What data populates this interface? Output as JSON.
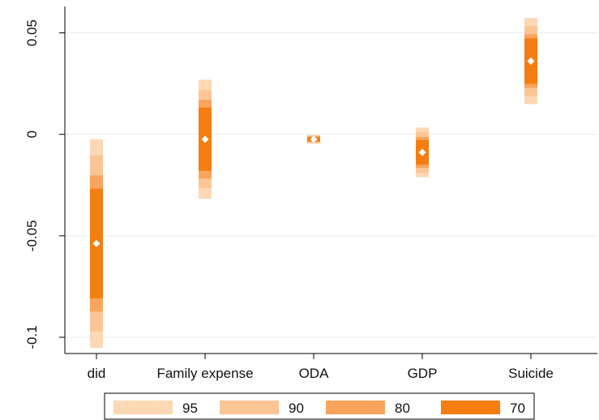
{
  "chart_data": {
    "type": "coefficient-plot",
    "title": "",
    "xlabel": "",
    "ylabel": "",
    "categories": [
      "did",
      "Family expense",
      "ODA",
      "GDP",
      "Suicide"
    ],
    "ylim": [
      -0.108,
      0.063
    ],
    "yticks": [
      -0.1,
      -0.05,
      0,
      0.05
    ],
    "ytick_labels": [
      "-0.1",
      "-0.05",
      "0",
      "0.05"
    ],
    "grid": true,
    "legend_position": "bottom",
    "levels": [
      {
        "name": "95",
        "color": "#fcd8b4"
      },
      {
        "name": "90",
        "color": "#fbc596"
      },
      {
        "name": "80",
        "color": "#f9a45c"
      },
      {
        "name": "70",
        "color": "#f47e12"
      }
    ],
    "point_color": "#ffffff",
    "estimates": [
      {
        "category": "did",
        "point": -0.0538,
        "intervals": {
          "95": [
            -0.1052,
            -0.0024
          ],
          "90": [
            -0.0971,
            -0.0104
          ],
          "80": [
            -0.0873,
            -0.0202
          ],
          "70": [
            -0.0808,
            -0.0268
          ]
        }
      },
      {
        "category": "Family expense",
        "point": -0.0024,
        "intervals": {
          "95": [
            -0.0317,
            0.0269
          ],
          "90": [
            -0.0265,
            0.0217
          ],
          "80": [
            -0.0218,
            0.017
          ],
          "70": [
            -0.018,
            0.0132
          ]
        }
      },
      {
        "category": "ODA",
        "point": -0.0024,
        "intervals": {
          "95": [
            -0.0046,
            -0.0002
          ],
          "90": [
            -0.0042,
            -0.0006
          ],
          "80": [
            -0.0038,
            -0.001
          ],
          "70": [
            -0.0035,
            -0.0013
          ]
        }
      },
      {
        "category": "GDP",
        "point": -0.0089,
        "intervals": {
          "95": [
            -0.0211,
            0.0033
          ],
          "90": [
            -0.0189,
            0.0011
          ],
          "80": [
            -0.0165,
            -0.0013
          ],
          "70": [
            -0.015,
            -0.0028
          ]
        }
      },
      {
        "category": "Suicide",
        "point": 0.0361,
        "intervals": {
          "95": [
            0.0149,
            0.0573
          ],
          "90": [
            0.0188,
            0.0534
          ],
          "80": [
            0.0229,
            0.0493
          ],
          "70": [
            0.0249,
            0.0473
          ]
        }
      }
    ]
  }
}
